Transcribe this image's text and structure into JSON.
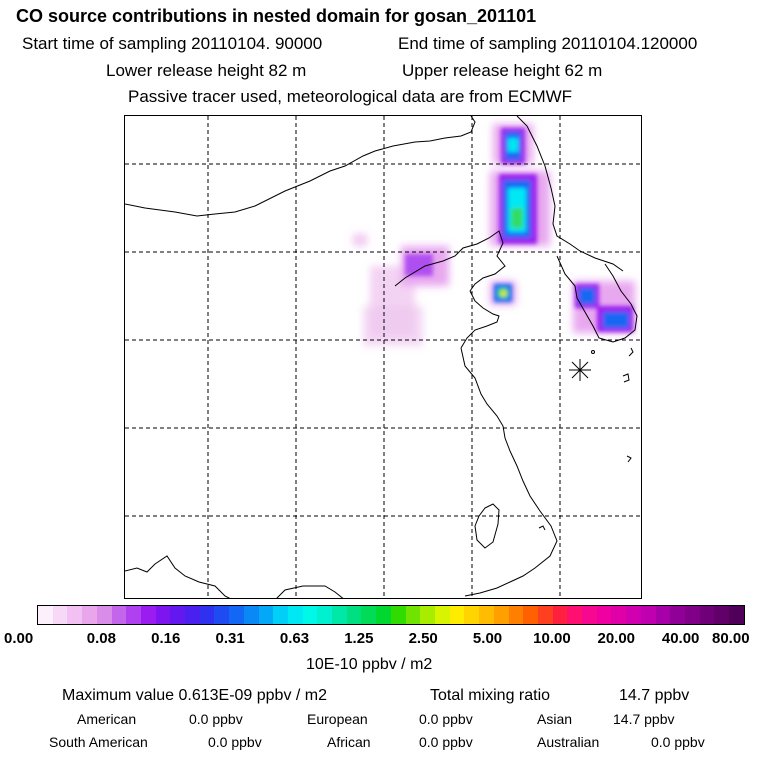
{
  "header": {
    "title": "CO  source contributions in nested domain for gosan_201101",
    "start_time": "Start time of sampling 20110104. 90000",
    "end_time": "End time of sampling 20110104.120000",
    "lower_release": "Lower release height   82 m",
    "upper_release": "Upper release height   62 m",
    "tracer_note": "Passive tracer used, meteorological data are from ECMWF"
  },
  "colorbar": {
    "tick_labels": [
      "0.00",
      "0.08",
      "0.16",
      "0.31",
      "0.63",
      "1.25",
      "2.50",
      "5.00",
      "10.00",
      "20.00",
      "40.00",
      "80.00"
    ],
    "colors": [
      "#fdf0fd",
      "#f7d8f7",
      "#f2c0f2",
      "#eaa6ea",
      "#d98ce8",
      "#c466ec",
      "#b040f0",
      "#9a1cf0",
      "#7e14f0",
      "#6418f0",
      "#4a20f0",
      "#3030f0",
      "#1e4cf2",
      "#1268f4",
      "#0a88f6",
      "#04a8f8",
      "#00d0f8",
      "#00e8f4",
      "#00f8e8",
      "#00f0d0",
      "#00e8a8",
      "#00e080",
      "#00dc58",
      "#00d830",
      "#30dc00",
      "#70e400",
      "#a8ec00",
      "#d8f400",
      "#ffec00",
      "#ffd400",
      "#ffbc00",
      "#ffa000",
      "#ff8000",
      "#ff6000",
      "#ff4020",
      "#ff2040",
      "#ff1070",
      "#f80890",
      "#f000a0",
      "#e000a8",
      "#d000b0",
      "#c000b0",
      "#a800a8",
      "#900098",
      "#800088",
      "#700078",
      "#600068",
      "#500058"
    ],
    "unit_label": "10E-10 ppbv / m2"
  },
  "footer": {
    "max_value": "Maximum value  0.613E-09 ppbv / m2",
    "total_mixing": "Total mixing ratio",
    "total_mixing_value": "14.7 ppbv",
    "regions": [
      {
        "name": "American",
        "value": "0.0 ppbv"
      },
      {
        "name": "European",
        "value": "0.0 ppbv"
      },
      {
        "name": "Asian",
        "value": "14.7 ppbv"
      },
      {
        "name": "South American",
        "value": "0.0 ppbv"
      },
      {
        "name": "African",
        "value": "0.0 ppbv"
      },
      {
        "name": "Australian",
        "value": "0.0 ppbv"
      }
    ]
  },
  "map": {
    "receptor_marker": "asterisk-receptor",
    "plume_colors": {
      "light": "#f0c8f0",
      "pink": "#e8a8f0",
      "purple": "#b050f0",
      "violet": "#9a1cf0",
      "blue": "#1868f4",
      "cyan": "#00e8f4",
      "green": "#30dc60",
      "yellow": "#f0f000"
    }
  }
}
